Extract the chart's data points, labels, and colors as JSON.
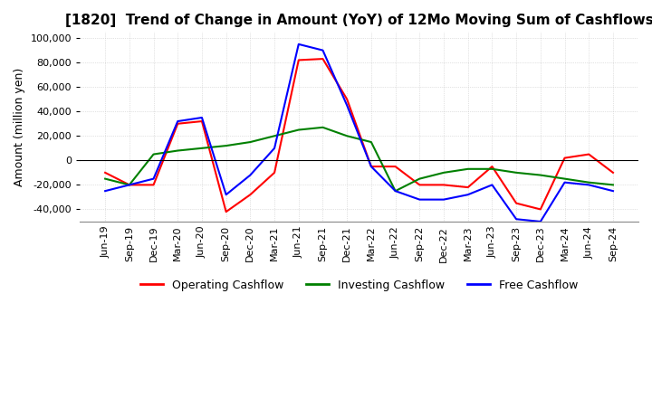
{
  "title": "[1820]  Trend of Change in Amount (YoY) of 12Mo Moving Sum of Cashflows",
  "ylabel": "Amount (million yen)",
  "ylim": [
    -50000,
    105000
  ],
  "yticks": [
    -40000,
    -20000,
    0,
    20000,
    40000,
    60000,
    80000,
    100000
  ],
  "dates": [
    "Jun-19",
    "Sep-19",
    "Dec-19",
    "Mar-20",
    "Jun-20",
    "Sep-20",
    "Dec-20",
    "Mar-21",
    "Jun-21",
    "Sep-21",
    "Dec-21",
    "Mar-22",
    "Jun-22",
    "Sep-22",
    "Dec-22",
    "Mar-23",
    "Jun-23",
    "Sep-23",
    "Dec-23",
    "Mar-24",
    "Jun-24",
    "Sep-24"
  ],
  "operating": [
    -10000,
    -20000,
    -20000,
    30000,
    32000,
    -42000,
    -28000,
    -10000,
    82000,
    83000,
    50000,
    -5000,
    -5000,
    -20000,
    -20000,
    -22000,
    -5000,
    -35000,
    -40000,
    2000,
    5000,
    -10000
  ],
  "investing": [
    -15000,
    -20000,
    5000,
    8000,
    10000,
    12000,
    15000,
    20000,
    25000,
    27000,
    20000,
    15000,
    -25000,
    -15000,
    -10000,
    -7000,
    -7000,
    -10000,
    -12000,
    -15000,
    -18000,
    -20000
  ],
  "free": [
    -25000,
    -20000,
    -15000,
    32000,
    35000,
    -28000,
    -12000,
    10000,
    95000,
    90000,
    45000,
    -5000,
    -25000,
    -32000,
    -32000,
    -28000,
    -20000,
    -48000,
    -50000,
    -18000,
    -20000,
    -25000
  ],
  "operating_color": "#ff0000",
  "investing_color": "#008000",
  "free_color": "#0000ff",
  "background_color": "#ffffff",
  "grid_color": "#c8c8c8"
}
